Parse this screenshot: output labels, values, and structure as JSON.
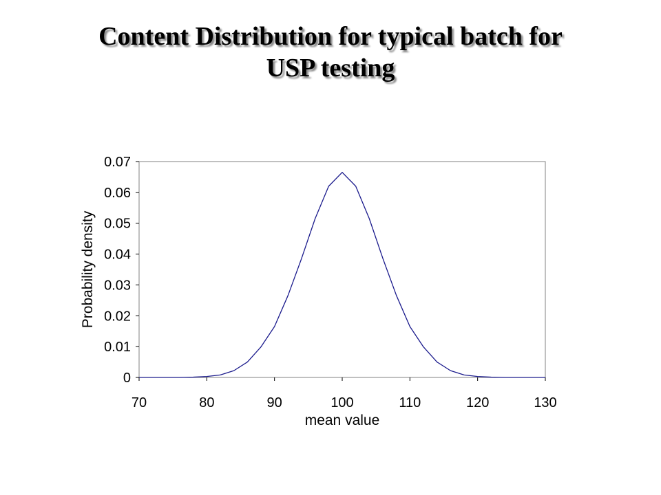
{
  "title": {
    "line1": "Content Distribution for typical batch for",
    "line2": "USP testing"
  },
  "chart_data": {
    "type": "line",
    "xlabel": "mean value",
    "ylabel": "Probability density",
    "xlim": [
      70,
      130
    ],
    "ylim": [
      0,
      0.07
    ],
    "x_ticks": [
      70,
      80,
      90,
      100,
      110,
      120,
      130
    ],
    "x_tick_labels": [
      "70",
      "80",
      "90",
      "100",
      "110",
      "120",
      "130"
    ],
    "y_ticks": [
      0,
      0.01,
      0.02,
      0.03,
      0.04,
      0.05,
      0.06,
      0.07
    ],
    "y_tick_labels": [
      "0",
      "0.01",
      "0.02",
      "0.03",
      "0.04",
      "0.05",
      "0.06",
      "0.07"
    ],
    "grid": false,
    "legend": "none",
    "series_color": "#1a1a8c",
    "series": [
      {
        "x": [
          70,
          72,
          74,
          76,
          78,
          80,
          82,
          84,
          86,
          88,
          90,
          92,
          94,
          96,
          98,
          100,
          102,
          104,
          106,
          108,
          110,
          112,
          114,
          116,
          118,
          120,
          122,
          124,
          126,
          128,
          130
        ],
        "values": [
          0.0,
          0.0,
          0.0,
          0.0,
          0.0001,
          0.0003,
          0.0008,
          0.0022,
          0.005,
          0.0099,
          0.0165,
          0.0266,
          0.0386,
          0.0515,
          0.062,
          0.0665,
          0.062,
          0.0515,
          0.0386,
          0.0266,
          0.0165,
          0.0099,
          0.005,
          0.0022,
          0.0008,
          0.0003,
          0.0001,
          0.0,
          0.0,
          0.0,
          0.0
        ]
      }
    ]
  }
}
